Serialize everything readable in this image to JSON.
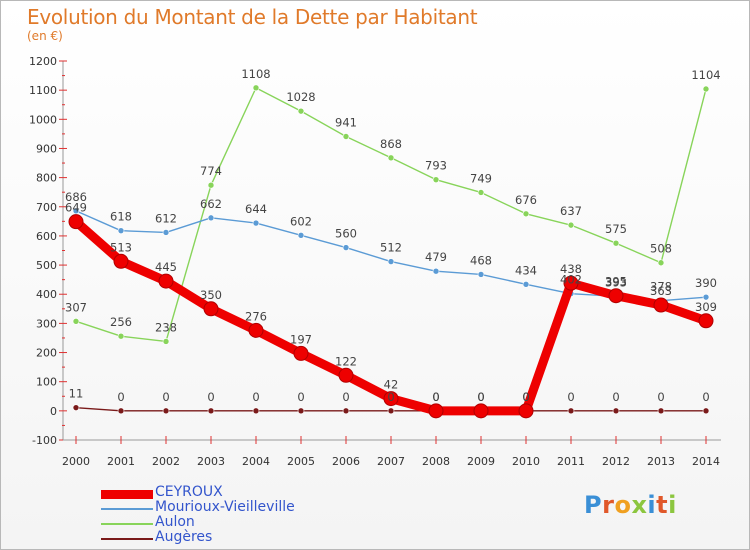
{
  "title": "Evolution du Montant de la Dette par Habitant",
  "unit_label": "(en €)",
  "logo": {
    "letters": [
      "P",
      "r",
      "o",
      "x",
      "i",
      "t",
      "i"
    ],
    "colors": [
      "#3a8fd6",
      "#e0582a",
      "#f0a020",
      "#8cc63f",
      "#3a8fd6",
      "#e0582a",
      "#8cc63f"
    ]
  },
  "chart_data": {
    "type": "line",
    "title": "Evolution du Montant de la Dette par Habitant",
    "ylabel": "(en €)",
    "xlabel": "",
    "x": [
      "2000",
      "2001",
      "2002",
      "2003",
      "2004",
      "2005",
      "2006",
      "2007",
      "2008",
      "2009",
      "2010",
      "2011",
      "2012",
      "2013",
      "2014"
    ],
    "ylim": [
      -100,
      1200
    ],
    "yticks": [
      -100,
      0,
      100,
      200,
      300,
      400,
      500,
      600,
      700,
      800,
      900,
      1000,
      1100,
      1200
    ],
    "grid": false,
    "legend_position": "bottom-left",
    "series": [
      {
        "name": "CEYROUX",
        "color": "#ee0000",
        "thick": true,
        "values": [
          649,
          513,
          445,
          350,
          276,
          197,
          122,
          42,
          0,
          0,
          0,
          438,
          395,
          363,
          309
        ],
        "labels": [
          "649",
          "513",
          "445",
          "350",
          "276",
          "197",
          "122",
          "42",
          "0",
          "0",
          "0",
          "438",
          "395",
          "363",
          "309"
        ]
      },
      {
        "name": "Mourioux-Vieilleville",
        "color": "#5b9bd5",
        "thick": false,
        "values": [
          686,
          618,
          612,
          662,
          644,
          602,
          560,
          512,
          479,
          468,
          434,
          402,
          393,
          378,
          390
        ],
        "labels": [
          "686",
          "618",
          "612",
          "662",
          "644",
          "602",
          "560",
          "512",
          "479",
          "468",
          "434",
          "402",
          "393",
          "378",
          "390"
        ]
      },
      {
        "name": "Aulon",
        "color": "#88d45a",
        "thick": false,
        "values": [
          307,
          256,
          238,
          774,
          1108,
          1028,
          941,
          868,
          793,
          749,
          676,
          637,
          575,
          508,
          1104
        ],
        "labels": [
          "307",
          "256",
          "238",
          "774",
          "1108",
          "1028",
          "941",
          "868",
          "793",
          "749",
          "676",
          "637",
          "575",
          "508",
          "1104"
        ]
      },
      {
        "name": "Augères",
        "color": "#7a1a1a",
        "thick": false,
        "values": [
          11,
          0,
          0,
          0,
          0,
          0,
          0,
          0,
          0,
          0,
          0,
          0,
          0,
          0,
          0
        ],
        "labels": [
          "11",
          "0",
          "0",
          "0",
          "0",
          "0",
          "0",
          "0",
          "0",
          "0",
          "0",
          "0",
          "0",
          "0",
          "0"
        ]
      }
    ]
  }
}
